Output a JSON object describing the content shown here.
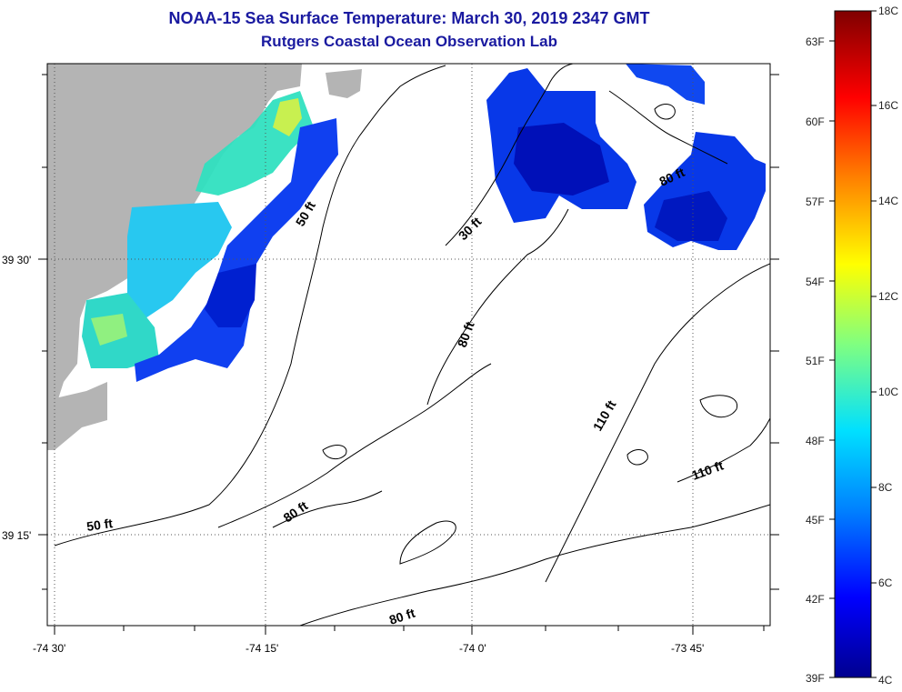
{
  "header": {
    "title": "NOAA-15 Sea Surface Temperature:  March 30, 2019 2347 GMT",
    "subtitle": "Rutgers Coastal Ocean Observation Lab"
  },
  "axes": {
    "lon_ticks": [
      "-74 30'",
      "-74 15'",
      "-74 0'",
      "-73 45'"
    ],
    "lat_ticks": [
      "39 30'",
      "39 15'"
    ]
  },
  "contours": {
    "labels": [
      "50 ft",
      "30 ft",
      "80 ft",
      "80 ft",
      "110 ft",
      "110 ft",
      "50 ft",
      "80 ft",
      "80 ft"
    ]
  },
  "colorbar": {
    "celsius": [
      "18C",
      "16C",
      "14C",
      "12C",
      "10C",
      "8C",
      "6C",
      "4C"
    ],
    "fahrenheit": [
      "63F",
      "60F",
      "57F",
      "54F",
      "51F",
      "48F",
      "45F",
      "42F",
      "39F"
    ],
    "gradient_colors": [
      "#7f0000",
      "#ff0000",
      "#ff8000",
      "#ffff00",
      "#80ff80",
      "#00e0ff",
      "#0080ff",
      "#0000ff",
      "#00008f"
    ]
  },
  "colors": {
    "land": "#b4b4b4",
    "title": "#1a1aa0"
  }
}
